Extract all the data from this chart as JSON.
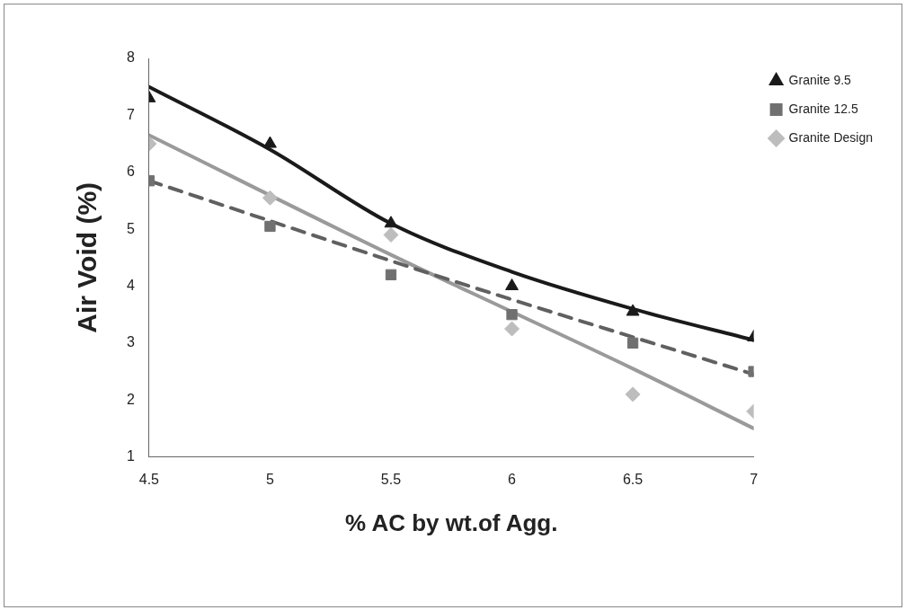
{
  "chart_data": {
    "type": "scatter",
    "xlabel": "% AC by wt.of Agg.",
    "ylabel": "Air Void (%)",
    "xlim": [
      4.5,
      7
    ],
    "ylim": [
      1,
      8
    ],
    "xticks": [
      4.5,
      5,
      5.5,
      6,
      6.5,
      7
    ],
    "yticks": [
      1,
      2,
      3,
      4,
      5,
      6,
      7,
      8
    ],
    "grid": false,
    "legend": "top right",
    "series": [
      {
        "name": "Granite 9.5",
        "type": "scatter",
        "marker": "triangle",
        "color": "#1a1a1a",
        "x": [
          4.5,
          5,
          5.5,
          6,
          6.5,
          7
        ],
        "values": [
          7.3,
          6.5,
          5.1,
          4.0,
          3.55,
          3.1
        ]
      },
      {
        "name": "Granite 12.5",
        "type": "scatter",
        "marker": "square",
        "color": "#707070",
        "x": [
          4.5,
          5,
          5.5,
          6,
          6.5,
          7
        ],
        "values": [
          5.85,
          5.05,
          4.2,
          3.5,
          3.0,
          2.5
        ]
      },
      {
        "name": "Granite Design",
        "type": "scatter",
        "marker": "diamond",
        "color": "#bdbdbd",
        "x": [
          4.5,
          5,
          5.5,
          6,
          6.5,
          7
        ],
        "values": [
          6.5,
          5.55,
          4.9,
          3.25,
          2.1,
          1.8
        ]
      },
      {
        "type": "line",
        "marker": "none",
        "line_style": "solid",
        "color": "#1a1a1a",
        "x": [
          4.5,
          5,
          5.5,
          6,
          6.5,
          7
        ],
        "values": [
          7.5,
          6.4,
          5.1,
          4.25,
          3.6,
          3.05
        ]
      },
      {
        "type": "line",
        "marker": "none",
        "line_style": "dashed",
        "color": "#606060",
        "x": [
          4.5,
          5.75,
          7
        ],
        "values": [
          5.85,
          4.1,
          2.45
        ]
      },
      {
        "type": "line",
        "marker": "none",
        "line_style": "solid",
        "color": "#9a9a9a",
        "x": [
          4.5,
          5.5,
          6,
          6.5,
          7
        ],
        "values": [
          6.65,
          4.55,
          3.55,
          2.55,
          1.5
        ]
      }
    ]
  }
}
